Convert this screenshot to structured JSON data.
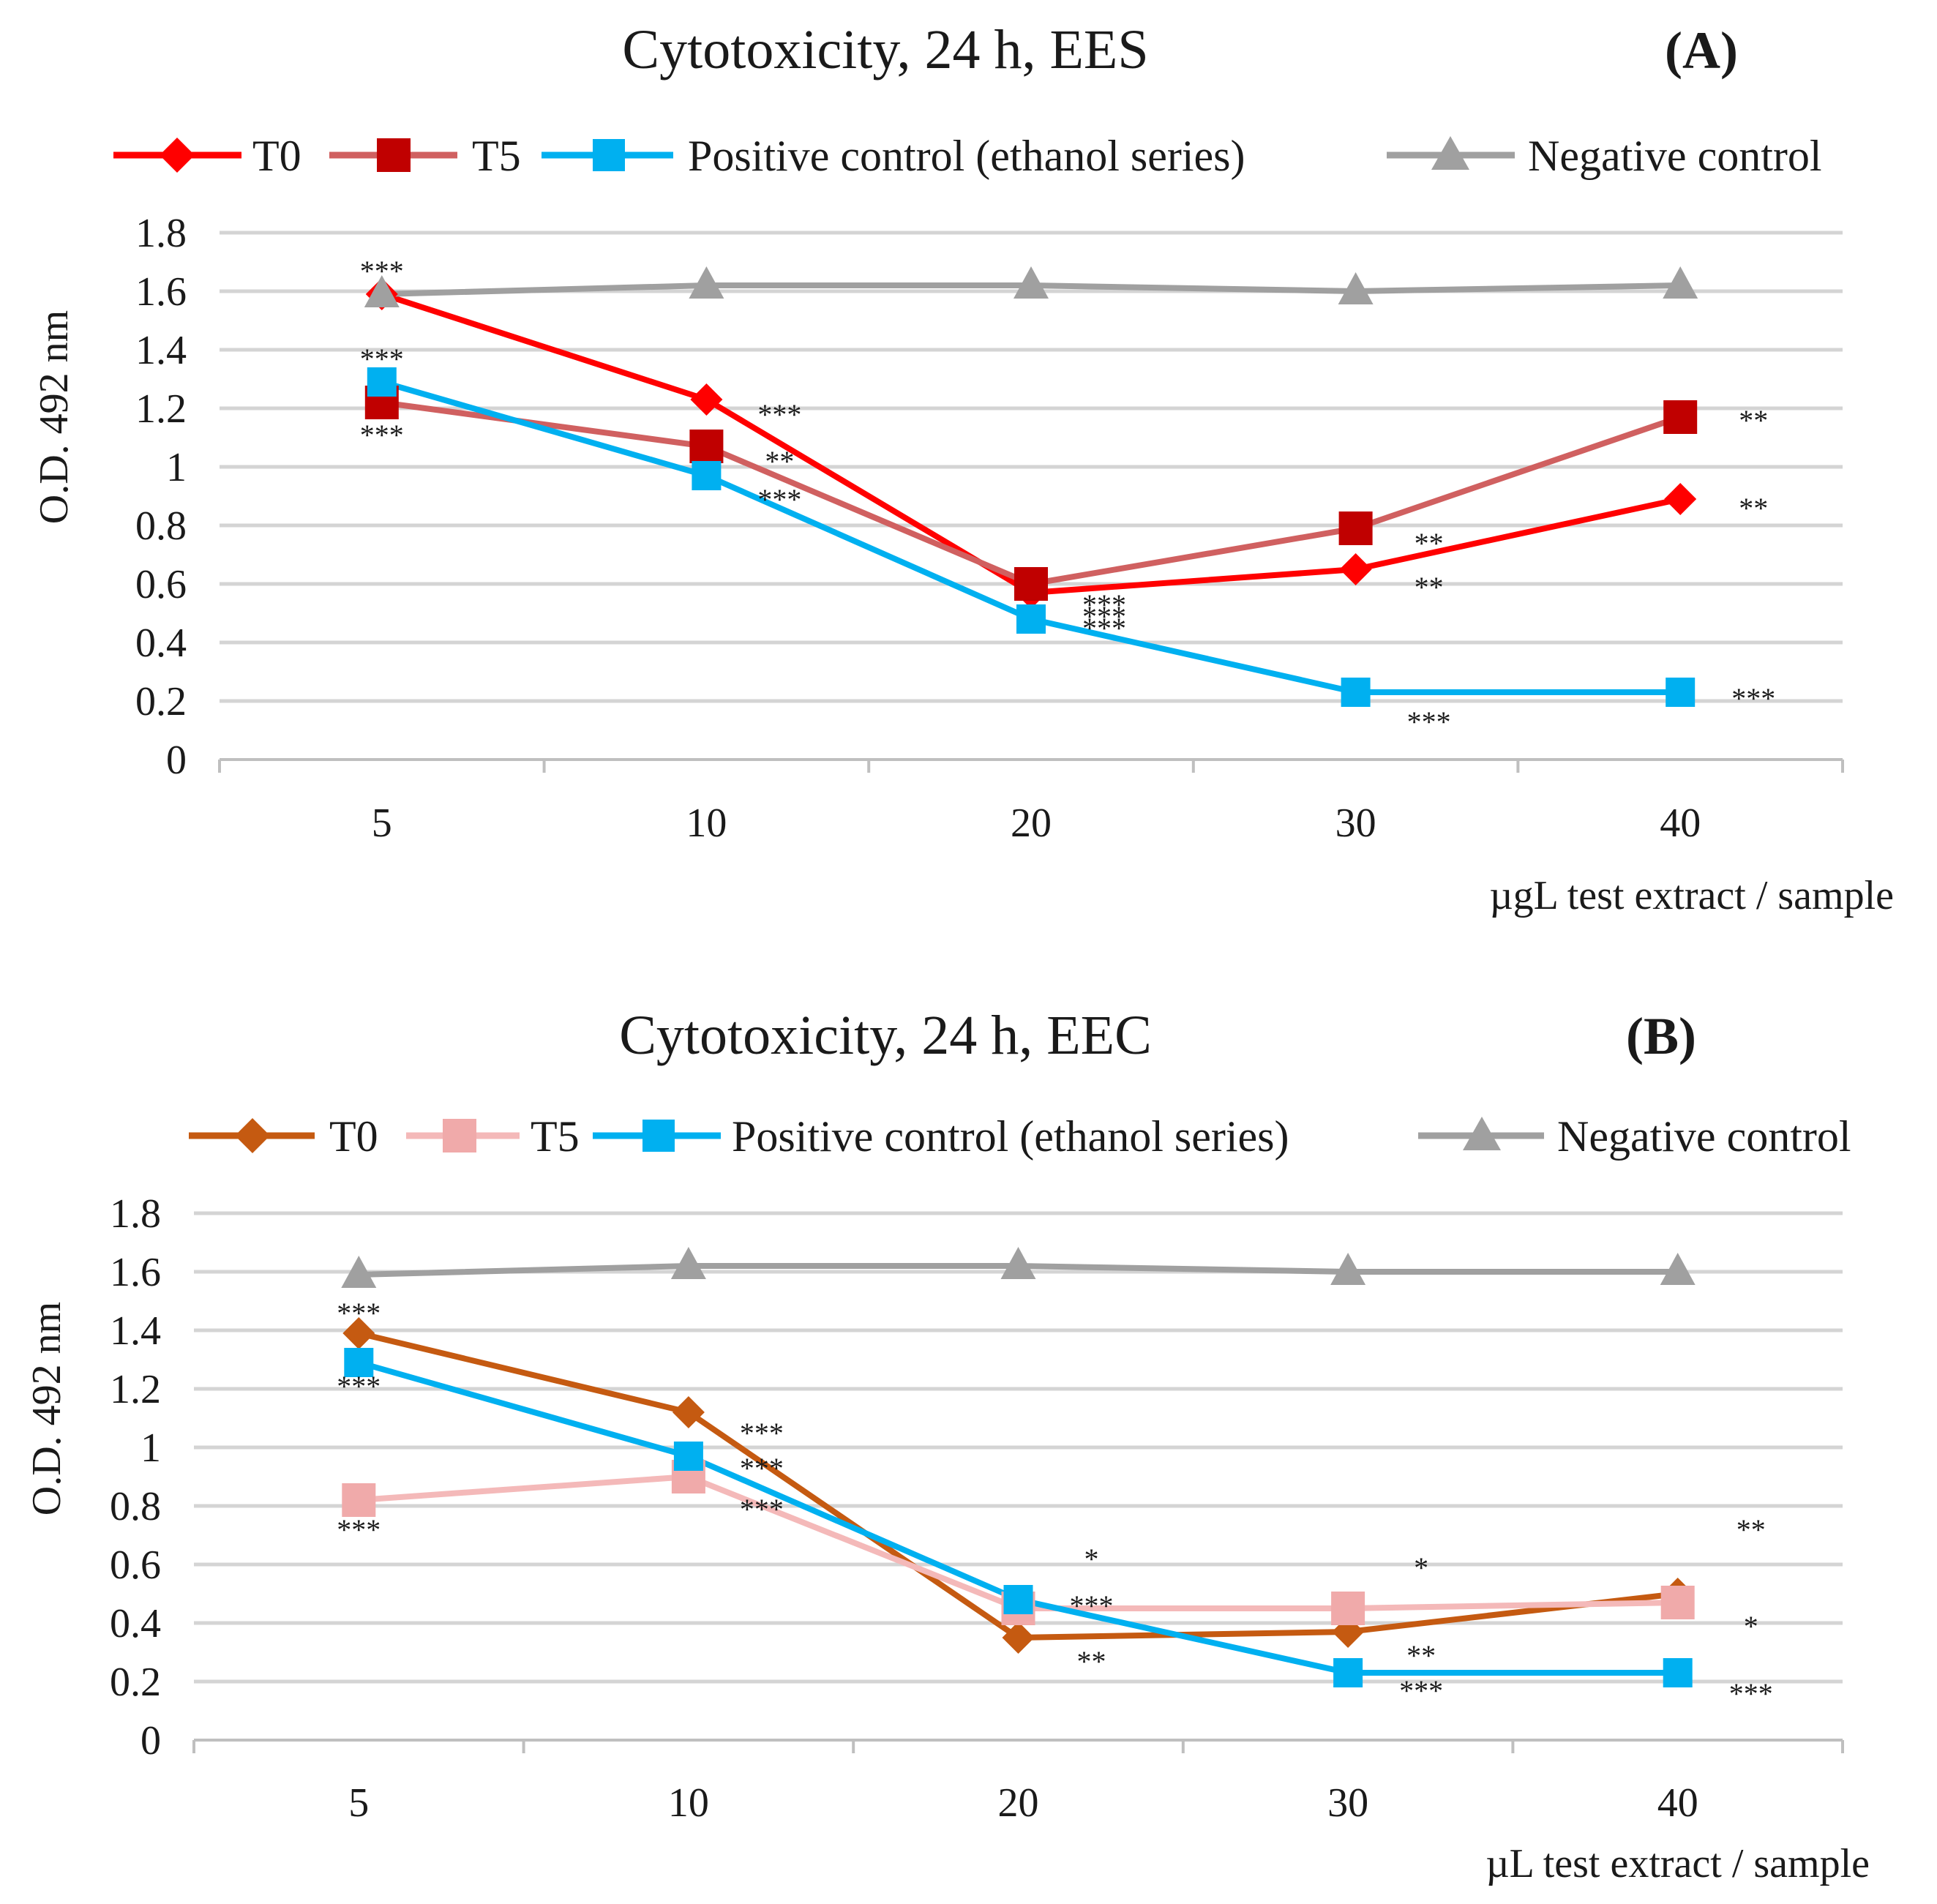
{
  "chart_data": [
    {
      "id": "A",
      "type": "line",
      "title": "Cytotoxicity, 24 h, EES",
      "panel_label": "(A)",
      "xlabel": "µgL test extract / sample",
      "ylabel": "O.D. 492 nm",
      "categories": [
        "5",
        "10",
        "20",
        "30",
        "40"
      ],
      "ylim": [
        0,
        1.8
      ],
      "yticks": [
        0,
        0.2,
        0.4,
        0.6,
        0.8,
        1,
        1.2,
        1.4,
        1.6,
        1.8
      ],
      "ytick_labels": [
        "0",
        "0.2",
        "0.4",
        "0.6",
        "0.8",
        "1",
        "1.2",
        "1.4",
        "1.6",
        "1.8"
      ],
      "grid": true,
      "legend_position": "top",
      "series": [
        {
          "name": "T0",
          "values": [
            1.59,
            1.23,
            0.57,
            0.65,
            0.89
          ],
          "color": "#ff0000",
          "marker": "diamond"
        },
        {
          "name": "T5",
          "values": [
            1.22,
            1.07,
            0.6,
            0.79,
            1.17
          ],
          "color": "#d06060",
          "marker_color": "#c00000",
          "marker": "square"
        },
        {
          "name": "Positive control (ethanol series)",
          "values": [
            1.29,
            0.97,
            0.48,
            0.23,
            0.23
          ],
          "color": "#00b0f0",
          "marker": "square"
        },
        {
          "name": "Negative control",
          "values": [
            1.59,
            1.62,
            1.62,
            1.6,
            1.62
          ],
          "color": "#a0a0a0",
          "marker": "triangle"
        }
      ],
      "annotations": [
        {
          "text": "***",
          "x": "5",
          "y": 1.67
        },
        {
          "text": "***",
          "x": "5",
          "y": 1.37
        },
        {
          "text": "***",
          "x": "5",
          "y": 1.11
        },
        {
          "text": "***",
          "x": "10",
          "y": 1.18
        },
        {
          "text": "**",
          "x": "10",
          "y": 1.02
        },
        {
          "text": "***",
          "x": "10",
          "y": 0.89
        },
        {
          "text": "***",
          "x": "20",
          "y": 0.53
        },
        {
          "text": "***",
          "x": "20",
          "y": 0.49
        },
        {
          "text": "***",
          "x": "20",
          "y": 0.45
        },
        {
          "text": "**",
          "x": "30",
          "y": 0.74
        },
        {
          "text": "**",
          "x": "30",
          "y": 0.59
        },
        {
          "text": "***",
          "x": "30",
          "y": 0.13
        },
        {
          "text": "**",
          "x": "40",
          "y": 1.16
        },
        {
          "text": "**",
          "x": "40",
          "y": 0.86
        },
        {
          "text": "***",
          "x": "40",
          "y": 0.21
        }
      ]
    },
    {
      "id": "B",
      "type": "line",
      "title": "Cytotoxicity, 24 h, EEC",
      "panel_label": "(B)",
      "xlabel": "µL test extract / sample",
      "ylabel": "O.D. 492 nm",
      "categories": [
        "5",
        "10",
        "20",
        "30",
        "40"
      ],
      "ylim": [
        0,
        1.8
      ],
      "yticks": [
        0,
        0.2,
        0.4,
        0.6,
        0.8,
        1,
        1.2,
        1.4,
        1.6,
        1.8
      ],
      "ytick_labels": [
        "0",
        "0.2",
        "0.4",
        "0.6",
        "0.8",
        "1",
        "1.2",
        "1.4",
        "1.6",
        "1.8"
      ],
      "grid": true,
      "legend_position": "top",
      "series": [
        {
          "name": "T0",
          "values": [
            1.39,
            1.12,
            0.35,
            0.37,
            0.5
          ],
          "color": "#c55a11",
          "marker": "diamond"
        },
        {
          "name": "T5",
          "values": [
            0.82,
            0.9,
            0.45,
            0.45,
            0.47
          ],
          "color": "#f4b9b9",
          "marker_color": "#f0aaaa",
          "marker": "square"
        },
        {
          "name": "Positive control (ethanol series)",
          "values": [
            1.29,
            0.97,
            0.48,
            0.23,
            0.23
          ],
          "color": "#00b0f0",
          "marker": "square"
        },
        {
          "name": "Negative control",
          "values": [
            1.59,
            1.62,
            1.62,
            1.6,
            1.6
          ],
          "color": "#a0a0a0",
          "marker": "triangle"
        }
      ],
      "annotations": [
        {
          "text": "***",
          "x": "5",
          "y": 1.46
        },
        {
          "text": "***",
          "x": "5",
          "y": 1.21
        },
        {
          "text": "***",
          "x": "5",
          "y": 0.72
        },
        {
          "text": "***",
          "x": "10",
          "y": 1.05
        },
        {
          "text": "***",
          "x": "10",
          "y": 0.93
        },
        {
          "text": "***",
          "x": "10",
          "y": 0.79
        },
        {
          "text": "*",
          "x": "20",
          "y": 0.62
        },
        {
          "text": "***",
          "x": "20",
          "y": 0.46
        },
        {
          "text": "**",
          "x": "20",
          "y": 0.27
        },
        {
          "text": "*",
          "x": "30",
          "y": 0.59
        },
        {
          "text": "**",
          "x": "30",
          "y": 0.29
        },
        {
          "text": "***",
          "x": "30",
          "y": 0.17
        },
        {
          "text": "**",
          "x": "40",
          "y": 0.72
        },
        {
          "text": "*",
          "x": "40",
          "y": 0.39
        },
        {
          "text": "***",
          "x": "40",
          "y": 0.16
        }
      ]
    }
  ]
}
